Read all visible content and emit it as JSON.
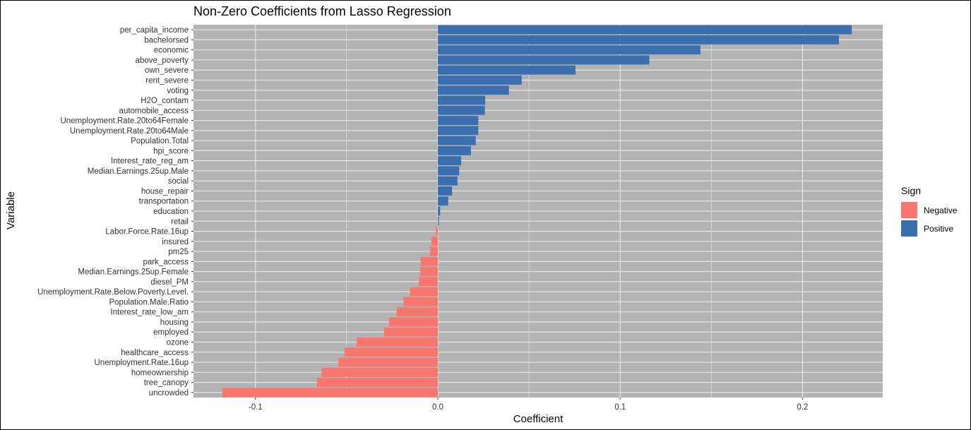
{
  "chart_data": {
    "type": "bar",
    "orientation": "horizontal",
    "title": "Non-Zero Coefficients from Lasso Regression",
    "xlabel": "Coefficient",
    "ylabel": "Variable",
    "xlim": [
      -0.134,
      0.244
    ],
    "x_ticks": [
      -0.1,
      0.0,
      0.1,
      0.2
    ],
    "x_tick_labels": [
      "-0.1",
      "0.0",
      "0.1",
      "0.2"
    ],
    "grid": true,
    "legend": {
      "title": "Sign",
      "position": "right",
      "entries": [
        {
          "label": "Negative",
          "color": "#F8766D"
        },
        {
          "label": "Positive",
          "color": "#3A70B0"
        }
      ]
    },
    "colors": {
      "panel": "#B3B3B3",
      "grid": "#E6E6E6",
      "negative": "#F8766D",
      "positive": "#3A70B0"
    },
    "categories": [
      "per_capita_income",
      "bachelorsed",
      "economic",
      "above_poverty",
      "own_severe",
      "rent_severe",
      "voting",
      "H2O_contam",
      "automobile_access",
      "Unemployment.Rate.20to64Female",
      "Unemployment.Rate.20to64Male",
      "Population.Total",
      "hpi_score",
      "Interest_rate_reg_am",
      "Median.Earnings.25up.Male",
      "social",
      "house_repair",
      "transportation",
      "education",
      "retail",
      "Labor.Force.Rate.16up",
      "insured",
      "pm25",
      "park_access",
      "Median.Earnings.25up.Female",
      "diesel_PM",
      "Unemployment.Rate.Below.Poverty.Level.",
      "Population.Male.Ratio",
      "Interest_rate_low_am",
      "housing",
      "employed",
      "ozone",
      "healthcare_access",
      "Unemployment.Rate.16up",
      "homeownership",
      "tree_canopy",
      "uncrowded"
    ],
    "values": [
      0.227,
      0.22,
      0.144,
      0.116,
      0.0755,
      0.046,
      0.039,
      0.026,
      0.0258,
      0.0222,
      0.0222,
      0.0208,
      0.0182,
      0.0128,
      0.0117,
      0.0108,
      0.0078,
      0.0057,
      0.0013,
      0.0005,
      -0.001,
      -0.0035,
      -0.0042,
      -0.0095,
      -0.0097,
      -0.0104,
      -0.0152,
      -0.0188,
      -0.0226,
      -0.0268,
      -0.0295,
      -0.0445,
      -0.0512,
      -0.0545,
      -0.0637,
      -0.0663,
      -0.1182
    ]
  }
}
